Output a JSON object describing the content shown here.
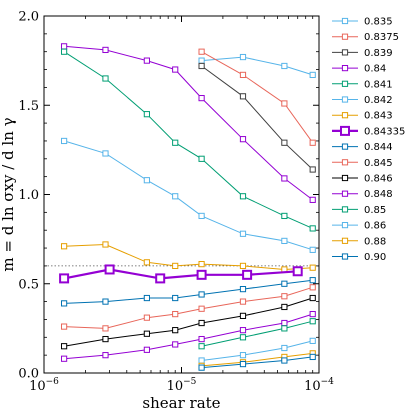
{
  "chart_data": {
    "type": "line",
    "xlabel": "shear rate",
    "ylabel": "m = d ln σxy / d ln γ",
    "xscale": "log",
    "xlim": [
      1e-06,
      0.0001
    ],
    "ylim": [
      0.0,
      2.0
    ],
    "x_tick_labels": [
      {
        "value": 1e-06,
        "base": "10",
        "exp": "−6"
      },
      {
        "value": 1e-05,
        "base": "10",
        "exp": "−5"
      },
      {
        "value": 0.0001,
        "base": "10",
        "exp": "−4"
      }
    ],
    "y_ticks": [
      0.0,
      0.5,
      1.0,
      1.5,
      2.0
    ],
    "y_tick_labels": [
      "0.0",
      "0.5",
      "1.0",
      "1.5",
      "2.0"
    ],
    "reference_line": {
      "y": 0.6,
      "style": "dotted",
      "color": "#555555"
    },
    "legend_position": "right",
    "marker": "open-square",
    "series": [
      {
        "name": "0.835",
        "color": "#56b4e9",
        "bold": false,
        "x": [
          1.4e-05,
          2.8e-05,
          5.6e-05,
          9e-05
        ],
        "y": [
          1.75,
          1.77,
          1.72,
          1.67
        ]
      },
      {
        "name": "0.8375",
        "color": "#e8665a",
        "bold": false,
        "x": [
          1.4e-05,
          2.8e-05,
          5.6e-05,
          9e-05
        ],
        "y": [
          1.8,
          1.67,
          1.51,
          1.29
        ]
      },
      {
        "name": "0.839",
        "color": "#404040",
        "bold": false,
        "x": [
          1.4e-05,
          2.8e-05,
          5.6e-05,
          9e-05
        ],
        "y": [
          1.72,
          1.55,
          1.29,
          1.14
        ]
      },
      {
        "name": "0.84",
        "color": "#9400d3",
        "bold": false,
        "x": [
          1.4e-06,
          2.8e-06,
          5.6e-06,
          9e-06,
          1.4e-05,
          2.8e-05,
          5.6e-05,
          9e-05
        ],
        "y": [
          1.83,
          1.81,
          1.75,
          1.7,
          1.54,
          1.31,
          1.09,
          0.97
        ]
      },
      {
        "name": "0.841",
        "color": "#009e73",
        "bold": false,
        "x": [
          1.4e-06,
          2.8e-06,
          5.6e-06,
          9e-06,
          1.4e-05,
          2.8e-05,
          5.6e-05,
          9e-05
        ],
        "y": [
          1.8,
          1.65,
          1.45,
          1.29,
          1.2,
          0.99,
          0.88,
          0.81
        ]
      },
      {
        "name": "0.842",
        "color": "#56b4e9",
        "bold": false,
        "x": [
          1.4e-06,
          2.8e-06,
          5.6e-06,
          9e-06,
          1.4e-05,
          2.8e-05,
          5.6e-05,
          9e-05
        ],
        "y": [
          1.3,
          1.23,
          1.08,
          0.99,
          0.88,
          0.78,
          0.74,
          0.69
        ]
      },
      {
        "name": "0.843",
        "color": "#e69f00",
        "bold": false,
        "x": [
          1.4e-06,
          2.8e-06,
          5.6e-06,
          9e-06,
          1.4e-05,
          2.8e-05,
          5.6e-05,
          9e-05
        ],
        "y": [
          0.71,
          0.72,
          0.62,
          0.6,
          0.61,
          0.6,
          0.58,
          0.59
        ]
      },
      {
        "name": "0.84335",
        "color": "#9400d3",
        "bold": true,
        "x": [
          1.4e-06,
          3e-06,
          7e-06,
          1.4e-05,
          3e-05,
          7e-05
        ],
        "y": [
          0.53,
          0.58,
          0.53,
          0.55,
          0.55,
          0.57
        ]
      },
      {
        "name": "0.844",
        "color": "#0072b2",
        "bold": false,
        "x": [
          1.4e-06,
          2.8e-06,
          5.6e-06,
          9e-06,
          1.4e-05,
          2.8e-05,
          5.6e-05,
          9e-05
        ],
        "y": [
          0.39,
          0.4,
          0.42,
          0.42,
          0.44,
          0.47,
          0.5,
          0.52
        ]
      },
      {
        "name": "0.845",
        "color": "#e8665a",
        "bold": false,
        "x": [
          1.4e-06,
          2.8e-06,
          5.6e-06,
          9e-06,
          1.4e-05,
          2.8e-05,
          5.6e-05,
          9e-05
        ],
        "y": [
          0.26,
          0.25,
          0.31,
          0.33,
          0.36,
          0.4,
          0.43,
          0.48
        ]
      },
      {
        "name": "0.846",
        "color": "#000000",
        "bold": false,
        "x": [
          1.4e-06,
          2.8e-06,
          5.6e-06,
          9e-06,
          1.4e-05,
          2.8e-05,
          5.6e-05,
          9e-05
        ],
        "y": [
          0.15,
          0.19,
          0.22,
          0.24,
          0.28,
          0.32,
          0.37,
          0.42
        ]
      },
      {
        "name": "0.848",
        "color": "#9400d3",
        "bold": false,
        "x": [
          1.4e-06,
          2.8e-06,
          5.6e-06,
          9e-06,
          1.4e-05,
          2.8e-05,
          5.6e-05,
          9e-05
        ],
        "y": [
          0.08,
          0.1,
          0.13,
          0.16,
          0.19,
          0.24,
          0.28,
          0.33
        ]
      },
      {
        "name": "0.85",
        "color": "#009e73",
        "bold": false,
        "x": [
          1.4e-05,
          2.8e-05,
          5.6e-05,
          9e-05
        ],
        "y": [
          0.15,
          0.2,
          0.25,
          0.29
        ]
      },
      {
        "name": "0.86",
        "color": "#56b4e9",
        "bold": false,
        "x": [
          1.4e-05,
          2.8e-05,
          5.6e-05,
          9e-05
        ],
        "y": [
          0.07,
          0.1,
          0.14,
          0.18
        ]
      },
      {
        "name": "0.88",
        "color": "#e69f00",
        "bold": false,
        "x": [
          1.4e-05,
          2.8e-05,
          5.6e-05,
          9e-05
        ],
        "y": [
          0.04,
          0.06,
          0.09,
          0.11
        ]
      },
      {
        "name": "0.90",
        "color": "#0072b2",
        "bold": false,
        "x": [
          1.4e-05,
          2.8e-05,
          5.6e-05,
          9e-05
        ],
        "y": [
          0.03,
          0.05,
          0.07,
          0.09
        ]
      }
    ]
  }
}
